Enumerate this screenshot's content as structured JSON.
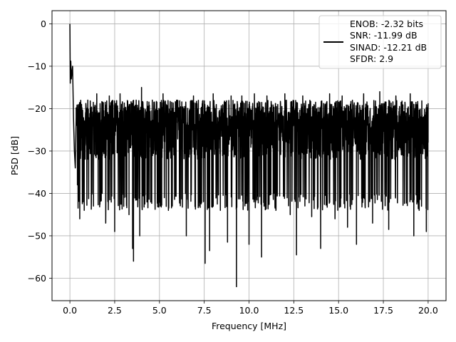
{
  "chart_data": {
    "type": "line",
    "title": "",
    "xlabel": "Frequency [MHz]",
    "ylabel": "PSD [dB]",
    "xlim": [
      -0.999,
      20.999
    ],
    "ylim": [
      -65.3,
      3.1
    ],
    "grid": true,
    "legend_position": "top-right",
    "xticks": [
      0.0,
      2.5,
      5.0,
      7.5,
      10.0,
      12.5,
      15.0,
      17.5,
      20.0
    ],
    "xtick_labels": [
      "0.0",
      "2.5",
      "5.0",
      "7.5",
      "10.0",
      "12.5",
      "15.0",
      "17.5",
      "20.0"
    ],
    "yticks": [
      0,
      -10,
      -20,
      -30,
      -40,
      -50,
      -60
    ],
    "ytick_labels": [
      "0",
      "−10",
      "−20",
      "−30",
      "−40",
      "−50",
      "−60"
    ],
    "series": [
      {
        "name": "ENOB: -2.32 bits\nSNR: -11.99 dB\nSINAD: -12.21 dB\nSFDR: 2.9",
        "legend_lines": [
          "ENOB: -2.32 bits",
          "SNR: -11.99 dB",
          "SINAD: -12.21 dB",
          "SFDR: 2.9"
        ],
        "color": "#000000",
        "noise_floor_mean_db": -30,
        "noise_upper_envelope_db": -18,
        "noise_lower_envelope_db": -40,
        "x_range": [
          0.0,
          20.0
        ],
        "points": [
          [
            0.0,
            0.0
          ],
          [
            0.02,
            -14.0
          ],
          [
            0.05,
            -8.8
          ],
          [
            0.08,
            -13.0
          ],
          [
            0.1,
            -12.0
          ],
          [
            0.15,
            -10.0
          ],
          [
            0.2,
            -22.0
          ],
          [
            0.25,
            -30.0
          ],
          [
            0.3,
            -34.0
          ],
          [
            0.35,
            -22.0
          ],
          [
            0.42,
            -38.0
          ],
          [
            0.5,
            -20.0
          ],
          [
            0.55,
            -46.0
          ],
          [
            0.65,
            -19.0
          ],
          [
            0.8,
            -44.0
          ],
          [
            1.0,
            -18.0
          ],
          [
            1.2,
            -42.0
          ],
          [
            1.5,
            -16.5
          ],
          [
            1.8,
            -40.0
          ],
          [
            2.0,
            -47.0
          ],
          [
            2.2,
            -17.0
          ],
          [
            2.5,
            -49.0
          ],
          [
            2.8,
            -16.5
          ],
          [
            3.0,
            -39.0
          ],
          [
            3.3,
            -45.0
          ],
          [
            3.5,
            -53.0
          ],
          [
            3.55,
            -56.0
          ],
          [
            3.7,
            -18.0
          ],
          [
            3.9,
            -50.0
          ],
          [
            4.0,
            -15.0
          ],
          [
            4.3,
            -42.0
          ],
          [
            4.6,
            -18.0
          ],
          [
            4.9,
            -40.0
          ],
          [
            5.2,
            -16.5
          ],
          [
            5.5,
            -44.0
          ],
          [
            6.0,
            -18.0
          ],
          [
            6.5,
            -50.0
          ],
          [
            6.9,
            -17.0
          ],
          [
            7.2,
            -43.0
          ],
          [
            7.55,
            -56.5
          ],
          [
            7.8,
            -53.5
          ],
          [
            8.0,
            -16.5
          ],
          [
            8.4,
            -44.0
          ],
          [
            8.8,
            -51.5
          ],
          [
            9.0,
            -17.0
          ],
          [
            9.3,
            -62.0
          ],
          [
            9.6,
            -17.0
          ],
          [
            10.0,
            -52.0
          ],
          [
            10.3,
            -16.5
          ],
          [
            10.7,
            -55.0
          ],
          [
            11.0,
            -17.0
          ],
          [
            11.5,
            -44.0
          ],
          [
            12.0,
            -16.5
          ],
          [
            12.3,
            -45.0
          ],
          [
            12.65,
            -54.5
          ],
          [
            13.0,
            -17.0
          ],
          [
            13.5,
            -45.5
          ],
          [
            14.0,
            -53.0
          ],
          [
            14.5,
            -16.5
          ],
          [
            14.8,
            -46.0
          ],
          [
            15.2,
            -17.0
          ],
          [
            15.5,
            -48.0
          ],
          [
            16.0,
            -52.0
          ],
          [
            16.4,
            -16.5
          ],
          [
            16.9,
            -47.0
          ],
          [
            17.3,
            -16.0
          ],
          [
            17.8,
            -48.5
          ],
          [
            18.2,
            -17.0
          ],
          [
            18.6,
            -41.0
          ],
          [
            19.0,
            -16.5
          ],
          [
            19.2,
            -50.0
          ],
          [
            19.5,
            -44.0
          ],
          [
            19.9,
            -49.0
          ],
          [
            20.0,
            -28.0
          ]
        ]
      }
    ]
  }
}
